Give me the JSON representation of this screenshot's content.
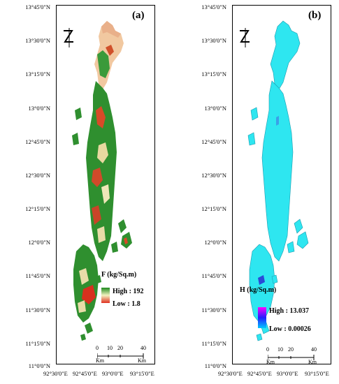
{
  "y_axis_labels": [
    "13°45'0\"N",
    "13°30'0\"N",
    "13°15'0\"N",
    "13°0'0\"N",
    "12°45'0\"N",
    "12°30'0\"N",
    "12°15'0\"N",
    "12°0'0\"N",
    "11°45'0\"N",
    "11°30'0\"N",
    "11°15'0\"N",
    "11°0'0\"N"
  ],
  "x_axis_labels": [
    "92°30'0\"E",
    "92°45'0\"E",
    "93°0'0\"E",
    "93°15'0\"E"
  ],
  "panel_a": {
    "label": "(a)",
    "legend_title": "F (kg/Sq.m)",
    "high": "High : 192",
    "low": "Low : 1.8",
    "gradient": [
      "#1e8a1e",
      "#f2f2c0",
      "#e03020"
    ]
  },
  "panel_b": {
    "label": "(b)",
    "legend_title": "H (kg/Sq.m)",
    "high": "High : 13.037",
    "low": "Low : 0.00026",
    "gradient": [
      "#ff00ff",
      "#2020ff",
      "#00c8ff"
    ]
  },
  "scale_bar": {
    "ticks": [
      "0",
      "10",
      "20",
      "40"
    ],
    "unit": "Km"
  },
  "island_color_b": "#2ee6f0",
  "north_arrow": "north-arrow-icon"
}
